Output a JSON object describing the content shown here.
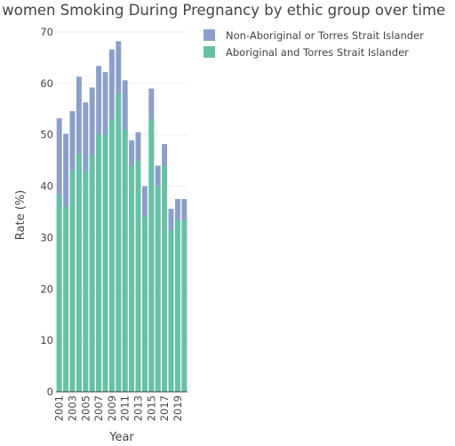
{
  "chart_data": {
    "type": "bar",
    "barmode": "overlay",
    "title": "Rate of women Smoking During Pregnancy by ethic group over time",
    "xlabel": "Year",
    "ylabel": "Rate (%)",
    "ylim": [
      0,
      70
    ],
    "yticks": [
      0,
      10,
      20,
      30,
      40,
      50,
      60,
      70
    ],
    "xticks": [
      "2001",
      "2003",
      "2005",
      "2007",
      "2009",
      "2011",
      "2013",
      "2015",
      "2017",
      "2019"
    ],
    "grid": true,
    "legend_position": "top-right",
    "categories": [
      "2001",
      "2002",
      "2003",
      "2004",
      "2005",
      "2006",
      "2007",
      "2008",
      "2009",
      "2010",
      "2011",
      "2012",
      "2013",
      "2014",
      "2015",
      "2016",
      "2017",
      "2018",
      "2019",
      "2020"
    ],
    "series": [
      {
        "name": "Non-Aboriginal or Torres Strait Islander",
        "color": "#8c9fcb",
        "values": [
          53.2,
          50.2,
          54.6,
          61.3,
          56.3,
          59.2,
          63.4,
          62.2,
          66.6,
          68.2,
          60.6,
          48.9,
          50.5,
          40.0,
          59.0,
          44.0,
          48.2,
          35.6,
          37.5,
          37.5
        ]
      },
      {
        "name": "Aboriginal and Torres Strait Islander",
        "color": "#66c2a5",
        "values": [
          38.4,
          36.0,
          43.0,
          46.3,
          43.0,
          46.0,
          50.0,
          50.0,
          53.0,
          58.0,
          51.0,
          44.0,
          45.0,
          34.0,
          53.0,
          40.0,
          44.0,
          31.5,
          33.5,
          33.5
        ]
      }
    ]
  }
}
